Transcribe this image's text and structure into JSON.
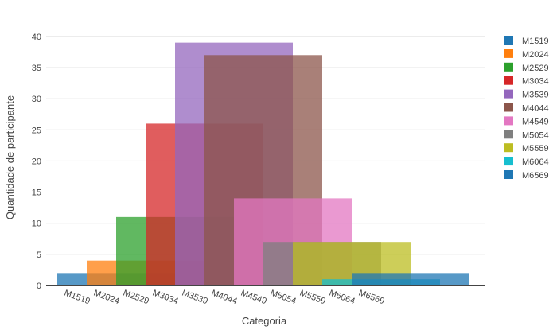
{
  "chart_data": {
    "type": "bar",
    "xlabel": "Categoria",
    "ylabel": "Quantidade de participante",
    "ylim": [
      0,
      42
    ],
    "yticks": [
      0,
      5,
      10,
      15,
      20,
      25,
      30,
      35,
      40
    ],
    "categories": [
      "M1519",
      "M2024",
      "M2529",
      "M3034",
      "M3539",
      "M4044",
      "M4549",
      "M5054",
      "M5559",
      "M6064",
      "M6569"
    ],
    "grid": true,
    "legend_position": "right",
    "bar_span_categories": 4,
    "series": [
      {
        "name": "M1519",
        "value": 2,
        "start_index": -1,
        "color": "#1f77b4"
      },
      {
        "name": "M2024",
        "value": 4,
        "start_index": 0,
        "color": "#ff7f0e"
      },
      {
        "name": "M2529",
        "value": 11,
        "start_index": 1,
        "color": "#2ca02c"
      },
      {
        "name": "M3034",
        "value": 26,
        "start_index": 2,
        "color": "#d62728"
      },
      {
        "name": "M3539",
        "value": 39,
        "start_index": 3,
        "color": "#9467bd"
      },
      {
        "name": "M4044",
        "value": 37,
        "start_index": 4,
        "color": "#8c564b"
      },
      {
        "name": "M4549",
        "value": 14,
        "start_index": 5,
        "color": "#e377c2"
      },
      {
        "name": "M5054",
        "value": 7,
        "start_index": 6,
        "color": "#7f7f7f"
      },
      {
        "name": "M5559",
        "value": 7,
        "start_index": 7,
        "color": "#bcbd22"
      },
      {
        "name": "M6064",
        "value": 1,
        "start_index": 8,
        "color": "#17becf"
      },
      {
        "name": "M6569",
        "value": 2,
        "start_index": 9,
        "color": "#1f77b4"
      }
    ]
  }
}
